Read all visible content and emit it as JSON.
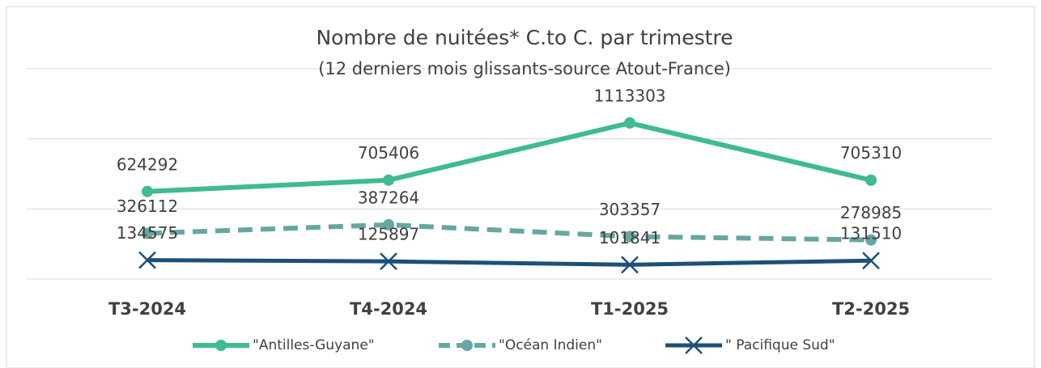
{
  "chart_data": {
    "type": "line",
    "title": "Nombre de nuitées* C.to C. par trimestre",
    "subtitle": "(12 derniers mois glissants-source Atout-France)",
    "categories": [
      "T3-2024",
      "T4-2024",
      "T1-2025",
      "T2-2025"
    ],
    "series": [
      {
        "name": "\"Antilles-Guyane\"",
        "color": "#3fbb8e",
        "values": [
          624292,
          705406,
          1113303,
          705310
        ]
      },
      {
        "name": "\"Océan Indien\"",
        "color": "#67a7a1",
        "values": [
          326112,
          387264,
          303357,
          278985
        ]
      },
      {
        "name": "\" Pacifique Sud\"",
        "color": "#1d4f7a",
        "values": [
          134575,
          125897,
          101841,
          131510
        ]
      }
    ],
    "ylim": [
      0,
      1500000
    ],
    "yticks": [
      0,
      500000,
      1000000,
      1500000
    ],
    "grid": true
  }
}
